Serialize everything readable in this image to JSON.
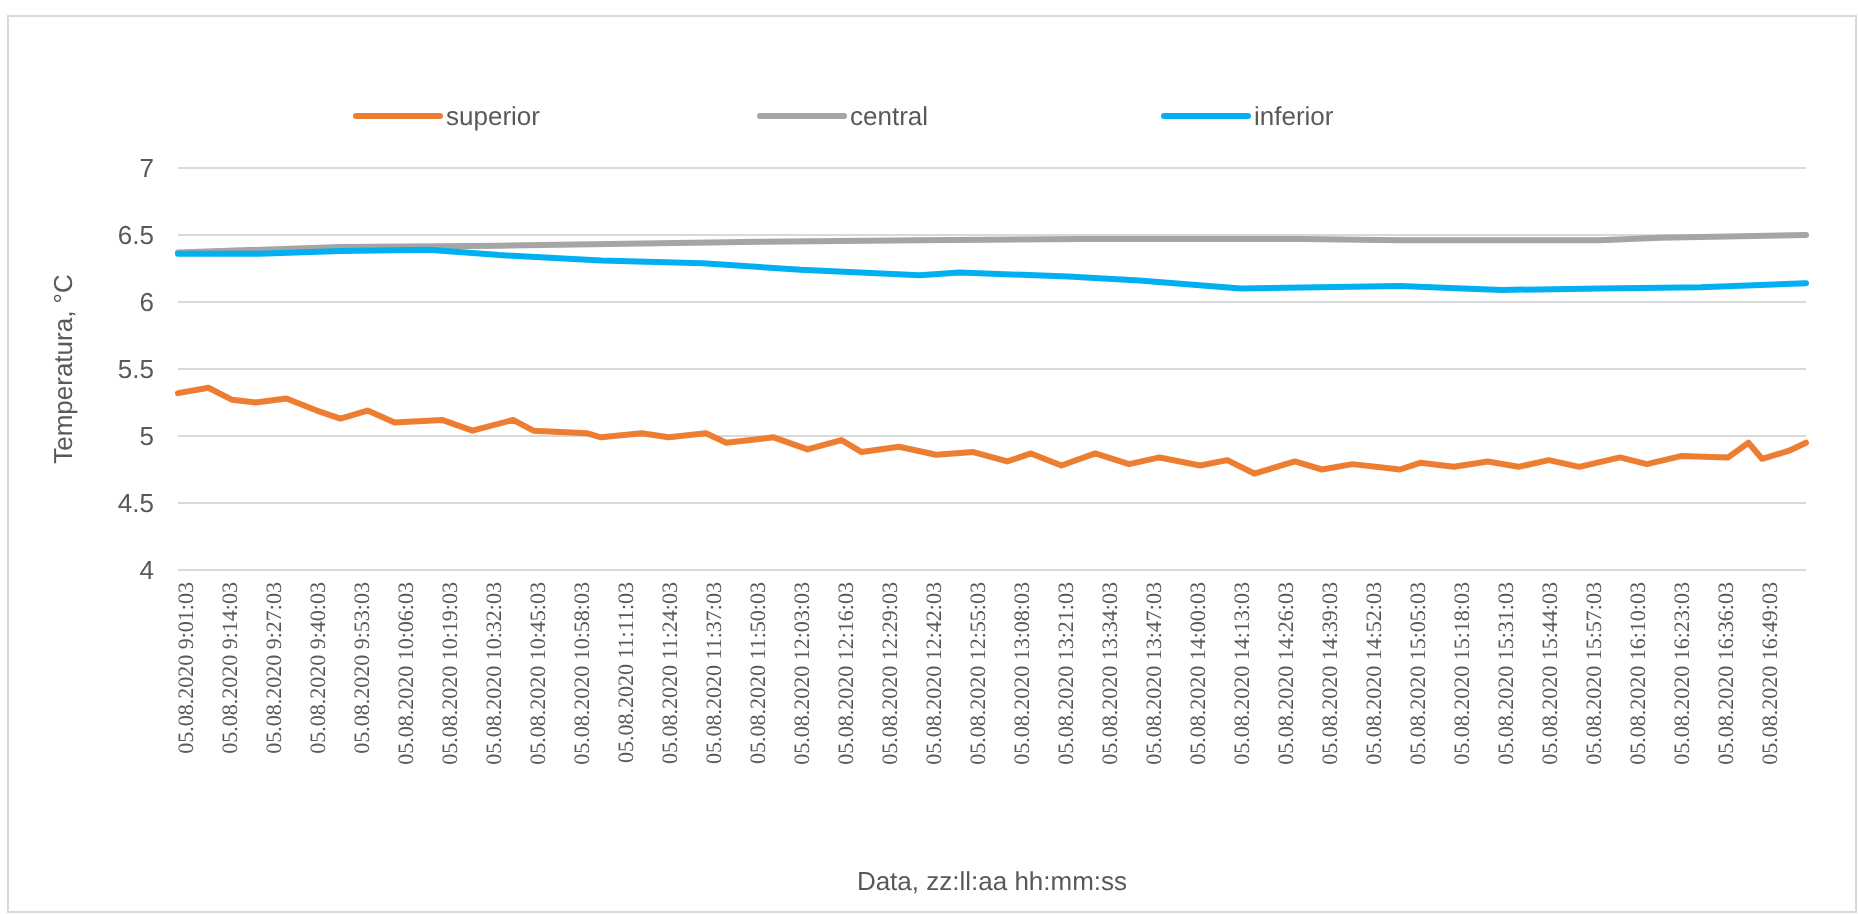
{
  "chart_data": {
    "type": "line",
    "xlabel": "Data, zz:ll:aa hh:mm:ss",
    "ylabel": "Temperatura, °C",
    "xlim": [
      "2020-08-05T08:59",
      "2020-08-05T17:00"
    ],
    "ylim": [
      4,
      7
    ],
    "yticks": [
      4,
      4.5,
      5,
      5.5,
      6,
      6.5,
      7
    ],
    "xticks": [
      {
        "value": "2020-08-05T09:01:03",
        "label": "05.08.2020 9:01:03"
      },
      {
        "value": "2020-08-05T09:14:03",
        "label": "05.08.2020 9:14:03"
      },
      {
        "value": "2020-08-05T09:27:03",
        "label": "05.08.2020 9:27:03"
      },
      {
        "value": "2020-08-05T09:40:03",
        "label": "05.08.2020 9:40:03"
      },
      {
        "value": "2020-08-05T09:53:03",
        "label": "05.08.2020 9:53:03"
      },
      {
        "value": "2020-08-05T10:06:03",
        "label": "05.08.2020 10:06:03"
      },
      {
        "value": "2020-08-05T10:19:03",
        "label": "05.08.2020 10:19:03"
      },
      {
        "value": "2020-08-05T10:32:03",
        "label": "05.08.2020 10:32:03"
      },
      {
        "value": "2020-08-05T10:45:03",
        "label": "05.08.2020 10:45:03"
      },
      {
        "value": "2020-08-05T10:58:03",
        "label": "05.08.2020 10:58:03"
      },
      {
        "value": "2020-08-05T11:11:03",
        "label": "05.08.2020 11:11:03"
      },
      {
        "value": "2020-08-05T11:24:03",
        "label": "05.08.2020 11:24:03"
      },
      {
        "value": "2020-08-05T11:37:03",
        "label": "05.08.2020 11:37:03"
      },
      {
        "value": "2020-08-05T11:50:03",
        "label": "05.08.2020 11:50:03"
      },
      {
        "value": "2020-08-05T12:03:03",
        "label": "05.08.2020 12:03:03"
      },
      {
        "value": "2020-08-05T12:16:03",
        "label": "05.08.2020 12:16:03"
      },
      {
        "value": "2020-08-05T12:29:03",
        "label": "05.08.2020 12:29:03"
      },
      {
        "value": "2020-08-05T12:42:03",
        "label": "05.08.2020 12:42:03"
      },
      {
        "value": "2020-08-05T12:55:03",
        "label": "05.08.2020 12:55:03"
      },
      {
        "value": "2020-08-05T13:08:03",
        "label": "05.08.2020 13:08:03"
      },
      {
        "value": "2020-08-05T13:21:03",
        "label": "05.08.2020 13:21:03"
      },
      {
        "value": "2020-08-05T13:34:03",
        "label": "05.08.2020 13:34:03"
      },
      {
        "value": "2020-08-05T13:47:03",
        "label": "05.08.2020 13:47:03"
      },
      {
        "value": "2020-08-05T14:00:03",
        "label": "05.08.2020 14:00:03"
      },
      {
        "value": "2020-08-05T14:13:03",
        "label": "05.08.2020 14:13:03"
      },
      {
        "value": "2020-08-05T14:26:03",
        "label": "05.08.2020 14:26:03"
      },
      {
        "value": "2020-08-05T14:39:03",
        "label": "05.08.2020 14:39:03"
      },
      {
        "value": "2020-08-05T14:52:03",
        "label": "05.08.2020 14:52:03"
      },
      {
        "value": "2020-08-05T15:05:03",
        "label": "05.08.2020 15:05:03"
      },
      {
        "value": "2020-08-05T15:18:03",
        "label": "05.08.2020 15:18:03"
      },
      {
        "value": "2020-08-05T15:31:03",
        "label": "05.08.2020 15:31:03"
      },
      {
        "value": "2020-08-05T15:44:03",
        "label": "05.08.2020 15:44:03"
      },
      {
        "value": "2020-08-05T15:57:03",
        "label": "05.08.2020 15:57:03"
      },
      {
        "value": "2020-08-05T16:10:03",
        "label": "05.08.2020 16:10:03"
      },
      {
        "value": "2020-08-05T16:23:03",
        "label": "05.08.2020 16:23:03"
      },
      {
        "value": "2020-08-05T16:36:03",
        "label": "05.08.2020 16:36:03"
      },
      {
        "value": "2020-08-05T16:49:03",
        "label": "05.08.2020 16:49:03"
      }
    ],
    "grid": "y",
    "legend": "top",
    "marker": "none",
    "line_style": "solid",
    "series": [
      {
        "name": "superior",
        "color": "#ed7d31",
        "x": [
          "2020-08-05T08:59",
          "2020-08-05T09:08",
          "2020-08-05T09:15",
          "2020-08-05T09:22",
          "2020-08-05T09:31",
          "2020-08-05T09:40",
          "2020-08-05T09:47",
          "2020-08-05T09:55",
          "2020-08-05T10:03",
          "2020-08-05T10:17",
          "2020-08-05T10:26",
          "2020-08-05T10:38",
          "2020-08-05T10:44",
          "2020-08-05T11:00",
          "2020-08-05T11:04",
          "2020-08-05T11:16",
          "2020-08-05T11:24",
          "2020-08-05T11:35",
          "2020-08-05T11:41",
          "2020-08-05T11:55",
          "2020-08-05T12:05",
          "2020-08-05T12:15",
          "2020-08-05T12:21",
          "2020-08-05T12:32",
          "2020-08-05T12:43",
          "2020-08-05T12:54",
          "2020-08-05T13:04",
          "2020-08-05T13:11",
          "2020-08-05T13:20",
          "2020-08-05T13:30",
          "2020-08-05T13:40",
          "2020-08-05T13:49",
          "2020-08-05T14:01",
          "2020-08-05T14:09",
          "2020-08-05T14:17",
          "2020-08-05T14:29",
          "2020-08-05T14:37",
          "2020-08-05T14:46",
          "2020-08-05T15:00",
          "2020-08-05T15:06",
          "2020-08-05T15:16",
          "2020-08-05T15:26",
          "2020-08-05T15:35",
          "2020-08-05T15:44",
          "2020-08-05T15:53",
          "2020-08-05T16:05",
          "2020-08-05T16:13",
          "2020-08-05T16:23",
          "2020-08-05T16:37",
          "2020-08-05T16:43",
          "2020-08-05T16:47",
          "2020-08-05T16:55",
          "2020-08-05T17:00"
        ],
        "values": [
          5.32,
          5.36,
          5.27,
          5.25,
          5.28,
          5.19,
          5.13,
          5.19,
          5.1,
          5.12,
          5.04,
          5.12,
          5.04,
          5.02,
          4.99,
          5.02,
          4.99,
          5.02,
          4.95,
          4.99,
          4.9,
          4.97,
          4.88,
          4.92,
          4.86,
          4.88,
          4.81,
          4.87,
          4.78,
          4.87,
          4.79,
          4.84,
          4.78,
          4.82,
          4.72,
          4.81,
          4.75,
          4.79,
          4.75,
          4.8,
          4.77,
          4.81,
          4.77,
          4.82,
          4.77,
          4.84,
          4.79,
          4.85,
          4.84,
          4.95,
          4.83,
          4.89,
          4.95
        ]
      },
      {
        "name": "central",
        "color": "#a5a5a5",
        "x": [
          "2020-08-05T08:59",
          "2020-08-05T09:47",
          "2020-08-05T10:34",
          "2020-08-05T11:51",
          "2020-08-05T12:38",
          "2020-08-05T13:26",
          "2020-08-05T14:31",
          "2020-08-05T15:00",
          "2020-08-05T15:59",
          "2020-08-05T16:17",
          "2020-08-05T17:00"
        ],
        "values": [
          6.37,
          6.41,
          6.42,
          6.45,
          6.46,
          6.47,
          6.47,
          6.46,
          6.46,
          6.48,
          6.5
        ]
      },
      {
        "name": "inferior",
        "color": "#00b0f0",
        "x": [
          "2020-08-05T08:59",
          "2020-08-05T09:23",
          "2020-08-05T09:47",
          "2020-08-05T10:13",
          "2020-08-05T10:34",
          "2020-08-05T11:04",
          "2020-08-05T11:34",
          "2020-08-05T12:03",
          "2020-08-05T12:38",
          "2020-08-05T12:50",
          "2020-08-05T13:22",
          "2020-08-05T13:43",
          "2020-08-05T14:13",
          "2020-08-05T15:00",
          "2020-08-05T15:30",
          "2020-08-05T15:59",
          "2020-08-05T16:29",
          "2020-08-05T17:00"
        ],
        "values": [
          6.36,
          6.36,
          6.38,
          6.39,
          6.35,
          6.31,
          6.29,
          6.24,
          6.2,
          6.22,
          6.19,
          6.16,
          6.1,
          6.12,
          6.09,
          6.1,
          6.11,
          6.14
        ]
      }
    ]
  }
}
